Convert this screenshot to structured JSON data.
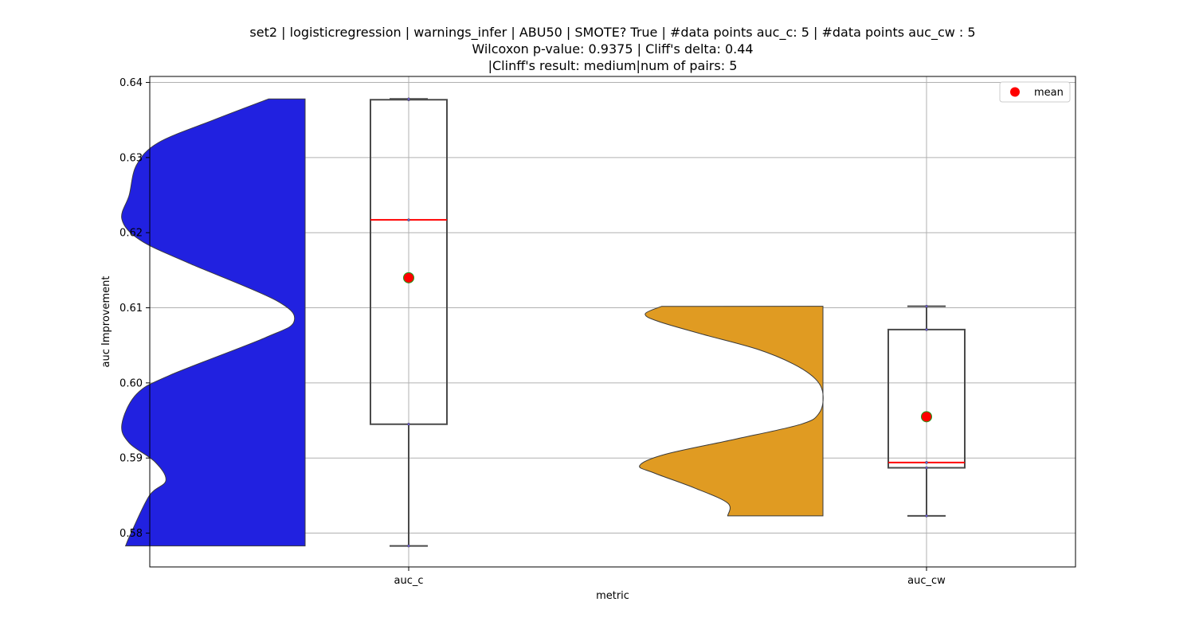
{
  "chart_data": {
    "type": "violin+box",
    "title_lines": [
      "set2 | logisticregression | warnings_infer | ABU50 | SMOTE? True | #data points auc_c: 5 | #data points auc_cw : 5",
      "Wilcoxon p-value: 0.9375 | Cliff's delta: 0.44",
      "|Clinff's result: medium|num of pairs: 5"
    ],
    "xlabel": "metric",
    "ylabel": "auc Improvement",
    "categories": [
      "auc_c",
      "auc_cw"
    ],
    "ylim": [
      0.5755,
      0.6408
    ],
    "yticks": [
      0.58,
      0.59,
      0.6,
      0.61,
      0.62,
      0.63,
      0.64
    ],
    "ytick_labels": [
      "0.58",
      "0.59",
      "0.60",
      "0.61",
      "0.62",
      "0.63",
      "0.64"
    ],
    "grid": true,
    "legend": {
      "position": "top-right",
      "entries": [
        {
          "label": "mean",
          "color": "#ff0000"
        }
      ]
    },
    "series": [
      {
        "category": "auc_c",
        "violin_color": "#2121e0",
        "violin_side": "left",
        "violin_range": [
          0.5783,
          0.6378
        ],
        "violin_width_profile": [
          [
            0.5783,
            0.98
          ],
          [
            0.58,
            0.95
          ],
          [
            0.585,
            0.85
          ],
          [
            0.587,
            0.76
          ],
          [
            0.5895,
            0.82
          ],
          [
            0.592,
            0.96
          ],
          [
            0.5945,
            1.0
          ],
          [
            0.5985,
            0.92
          ],
          [
            0.601,
            0.74
          ],
          [
            0.606,
            0.22
          ],
          [
            0.6082,
            0.06
          ],
          [
            0.611,
            0.16
          ],
          [
            0.616,
            0.64
          ],
          [
            0.619,
            0.9
          ],
          [
            0.6218,
            1.0
          ],
          [
            0.625,
            0.96
          ],
          [
            0.629,
            0.92
          ],
          [
            0.632,
            0.8
          ],
          [
            0.635,
            0.5
          ],
          [
            0.6378,
            0.2
          ]
        ],
        "box": {
          "q1": 0.5945,
          "median": 0.6217,
          "q3": 0.6377,
          "whisker_low": 0.5783,
          "whisker_high": 0.6378
        },
        "mean": 0.614,
        "points": [
          0.5783,
          0.5945,
          0.6217,
          0.6377,
          0.6378
        ]
      },
      {
        "category": "auc_cw",
        "violin_color": "#e09b22",
        "violin_side": "left",
        "violin_range": [
          0.5823,
          0.6102
        ],
        "violin_width_profile": [
          [
            0.5823,
            0.52
          ],
          [
            0.584,
            0.52
          ],
          [
            0.586,
            0.7
          ],
          [
            0.588,
            0.92
          ],
          [
            0.589,
            1.0
          ],
          [
            0.5905,
            0.86
          ],
          [
            0.5925,
            0.48
          ],
          [
            0.5945,
            0.12
          ],
          [
            0.596,
            0.02
          ],
          [
            0.5985,
            0.0
          ],
          [
            0.6005,
            0.04
          ],
          [
            0.6025,
            0.16
          ],
          [
            0.6045,
            0.36
          ],
          [
            0.6065,
            0.66
          ],
          [
            0.6082,
            0.9
          ],
          [
            0.6092,
            0.97
          ],
          [
            0.6102,
            0.88
          ]
        ],
        "box": {
          "q1": 0.5887,
          "median": 0.5894,
          "q3": 0.6071,
          "whisker_low": 0.5823,
          "whisker_high": 0.6102
        },
        "mean": 0.5955,
        "points": [
          0.5823,
          0.5887,
          0.5894,
          0.6071,
          0.6102
        ]
      }
    ]
  }
}
